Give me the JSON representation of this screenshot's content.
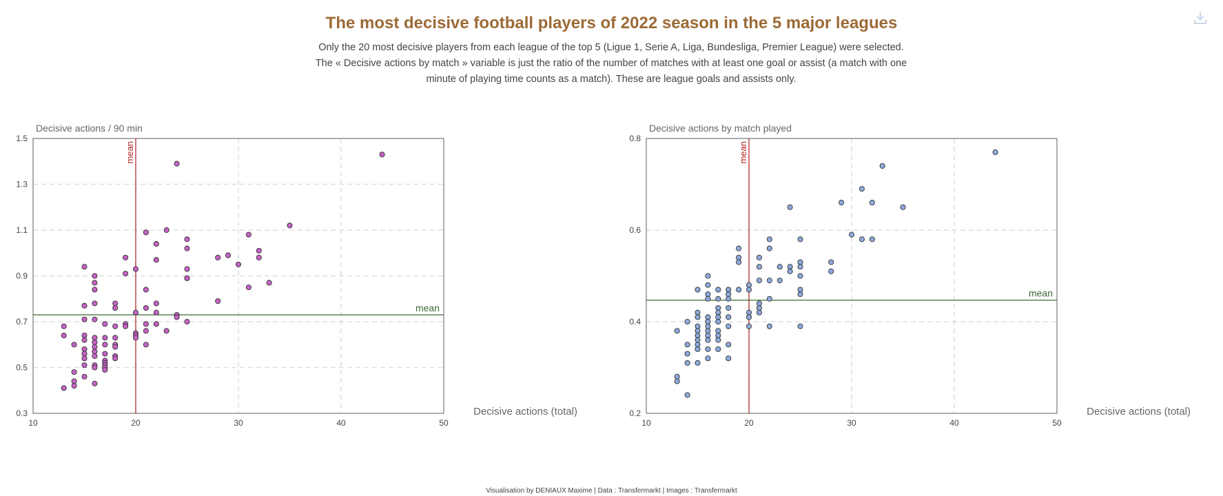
{
  "header": {
    "title": "The most decisive football players of 2022 season in the 5 major leagues",
    "subtitle_lines": [
      "Only the 20 most decisive players from each league of the top 5 (Ligue 1, Serie A, Liga, Bundesliga, Premier League) were selected.",
      "The « Decisive actions by match » variable is just the ratio of the number of matches with at least one goal or assist (a match with one",
      "minute of playing time counts as a match). These are league goals and assists only."
    ],
    "download_icon": "download-icon"
  },
  "footer": {
    "text": "Visualisation by DENIAUX Maxime | Data : Transfermarkt | Images : Transfermarkt"
  },
  "colors": {
    "title": "#9c6a36",
    "chart1_point": "#c562c5",
    "chart2_point": "#8eaadb",
    "vertical_mean": "#b22222",
    "horizontal_mean": "#3a6b30"
  },
  "chart_data": [
    {
      "type": "scatter",
      "title": "",
      "ylabel": "Decisive actions / 90 min",
      "xlabel": "Decisive actions (total)",
      "xlim": [
        10,
        50
      ],
      "ylim": [
        0.3,
        1.5
      ],
      "xticks": [
        10,
        20,
        30,
        40,
        50
      ],
      "yticks": [
        0.3,
        0.5,
        0.7,
        0.9,
        1.1,
        1.3,
        1.5
      ],
      "grid": true,
      "mean_x": 20,
      "mean_y": 0.73,
      "mean_x_label": "mean",
      "mean_y_label": "mean",
      "points": [
        [
          44,
          1.43
        ],
        [
          24,
          1.39
        ],
        [
          35,
          1.12
        ],
        [
          23,
          1.1
        ],
        [
          21,
          1.09
        ],
        [
          31,
          1.08
        ],
        [
          25,
          1.06
        ],
        [
          22,
          1.04
        ],
        [
          32,
          1.01
        ],
        [
          25,
          1.02
        ],
        [
          29,
          0.99
        ],
        [
          28,
          0.98
        ],
        [
          19,
          0.98
        ],
        [
          32,
          0.98
        ],
        [
          22,
          0.97
        ],
        [
          15,
          0.94
        ],
        [
          30,
          0.95
        ],
        [
          25,
          0.93
        ],
        [
          20,
          0.93
        ],
        [
          19,
          0.91
        ],
        [
          16,
          0.9
        ],
        [
          25,
          0.89
        ],
        [
          25,
          0.89
        ],
        [
          16,
          0.87
        ],
        [
          33,
          0.87
        ],
        [
          31,
          0.85
        ],
        [
          16,
          0.84
        ],
        [
          21,
          0.84
        ],
        [
          28,
          0.79
        ],
        [
          16,
          0.78
        ],
        [
          18,
          0.78
        ],
        [
          22,
          0.78
        ],
        [
          15,
          0.77
        ],
        [
          18,
          0.76
        ],
        [
          21,
          0.76
        ],
        [
          22,
          0.74
        ],
        [
          20,
          0.74
        ],
        [
          24,
          0.73
        ],
        [
          24,
          0.72
        ],
        [
          15,
          0.71
        ],
        [
          16,
          0.71
        ],
        [
          25,
          0.7
        ],
        [
          13,
          0.68
        ],
        [
          17,
          0.69
        ],
        [
          19,
          0.69
        ],
        [
          21,
          0.69
        ],
        [
          22,
          0.69
        ],
        [
          18,
          0.68
        ],
        [
          19,
          0.68
        ],
        [
          21,
          0.66
        ],
        [
          23,
          0.66
        ],
        [
          20,
          0.65
        ],
        [
          20,
          0.64
        ],
        [
          13,
          0.64
        ],
        [
          15,
          0.64
        ],
        [
          15,
          0.62
        ],
        [
          16,
          0.63
        ],
        [
          17,
          0.63
        ],
        [
          18,
          0.63
        ],
        [
          20,
          0.63
        ],
        [
          14,
          0.6
        ],
        [
          16,
          0.61
        ],
        [
          17,
          0.6
        ],
        [
          18,
          0.6
        ],
        [
          21,
          0.6
        ],
        [
          16,
          0.59
        ],
        [
          18,
          0.59
        ],
        [
          15,
          0.58
        ],
        [
          16,
          0.57
        ],
        [
          17,
          0.56
        ],
        [
          15,
          0.56
        ],
        [
          18,
          0.55
        ],
        [
          16,
          0.55
        ],
        [
          15,
          0.54
        ],
        [
          18,
          0.54
        ],
        [
          17,
          0.53
        ],
        [
          17,
          0.52
        ],
        [
          15,
          0.51
        ],
        [
          16,
          0.51
        ],
        [
          17,
          0.51
        ],
        [
          16,
          0.5
        ],
        [
          17,
          0.5
        ],
        [
          17,
          0.49
        ],
        [
          14,
          0.48
        ],
        [
          15,
          0.46
        ],
        [
          14,
          0.44
        ],
        [
          16,
          0.43
        ],
        [
          14,
          0.42
        ],
        [
          13,
          0.41
        ]
      ]
    },
    {
      "type": "scatter",
      "title": "",
      "ylabel": "Decisive actions by match played",
      "xlabel": "Decisive actions (total)",
      "xlim": [
        10,
        50
      ],
      "ylim": [
        0.2,
        0.8
      ],
      "xticks": [
        10,
        20,
        30,
        40,
        50
      ],
      "yticks": [
        0.2,
        0.4,
        0.6,
        0.8
      ],
      "grid": true,
      "mean_x": 20,
      "mean_y": 0.447,
      "mean_x_label": "mean",
      "mean_y_label": "mean",
      "points": [
        [
          44,
          0.77
        ],
        [
          33,
          0.74
        ],
        [
          31,
          0.69
        ],
        [
          29,
          0.66
        ],
        [
          32,
          0.66
        ],
        [
          24,
          0.65
        ],
        [
          35,
          0.65
        ],
        [
          30,
          0.59
        ],
        [
          22,
          0.58
        ],
        [
          25,
          0.58
        ],
        [
          31,
          0.58
        ],
        [
          32,
          0.58
        ],
        [
          19,
          0.56
        ],
        [
          22,
          0.56
        ],
        [
          19,
          0.54
        ],
        [
          21,
          0.54
        ],
        [
          19,
          0.53
        ],
        [
          25,
          0.53
        ],
        [
          28,
          0.53
        ],
        [
          21,
          0.52
        ],
        [
          23,
          0.52
        ],
        [
          24,
          0.52
        ],
        [
          25,
          0.52
        ],
        [
          24,
          0.51
        ],
        [
          28,
          0.51
        ],
        [
          16,
          0.5
        ],
        [
          25,
          0.5
        ],
        [
          21,
          0.49
        ],
        [
          22,
          0.49
        ],
        [
          23,
          0.49
        ],
        [
          16,
          0.48
        ],
        [
          20,
          0.48
        ],
        [
          15,
          0.47
        ],
        [
          17,
          0.47
        ],
        [
          18,
          0.47
        ],
        [
          19,
          0.47
        ],
        [
          20,
          0.47
        ],
        [
          25,
          0.47
        ],
        [
          16,
          0.46
        ],
        [
          18,
          0.46
        ],
        [
          25,
          0.46
        ],
        [
          16,
          0.45
        ],
        [
          17,
          0.45
        ],
        [
          18,
          0.45
        ],
        [
          22,
          0.45
        ],
        [
          21,
          0.44
        ],
        [
          17,
          0.43
        ],
        [
          18,
          0.43
        ],
        [
          21,
          0.43
        ],
        [
          15,
          0.42
        ],
        [
          17,
          0.42
        ],
        [
          20,
          0.42
        ],
        [
          21,
          0.42
        ],
        [
          15,
          0.41
        ],
        [
          16,
          0.41
        ],
        [
          17,
          0.41
        ],
        [
          18,
          0.41
        ],
        [
          20,
          0.41
        ],
        [
          16,
          0.4
        ],
        [
          17,
          0.4
        ],
        [
          14,
          0.4
        ],
        [
          15,
          0.39
        ],
        [
          16,
          0.39
        ],
        [
          18,
          0.39
        ],
        [
          20,
          0.39
        ],
        [
          22,
          0.39
        ],
        [
          25,
          0.39
        ],
        [
          13,
          0.38
        ],
        [
          15,
          0.38
        ],
        [
          16,
          0.38
        ],
        [
          17,
          0.38
        ],
        [
          16,
          0.37
        ],
        [
          15,
          0.37
        ],
        [
          17,
          0.37
        ],
        [
          15,
          0.36
        ],
        [
          16,
          0.36
        ],
        [
          17,
          0.36
        ],
        [
          14,
          0.35
        ],
        [
          15,
          0.35
        ],
        [
          18,
          0.35
        ],
        [
          15,
          0.34
        ],
        [
          16,
          0.34
        ],
        [
          17,
          0.34
        ],
        [
          14,
          0.33
        ],
        [
          18,
          0.32
        ],
        [
          16,
          0.32
        ],
        [
          14,
          0.31
        ],
        [
          15,
          0.31
        ],
        [
          13,
          0.28
        ],
        [
          13,
          0.27
        ],
        [
          14,
          0.24
        ]
      ]
    }
  ]
}
